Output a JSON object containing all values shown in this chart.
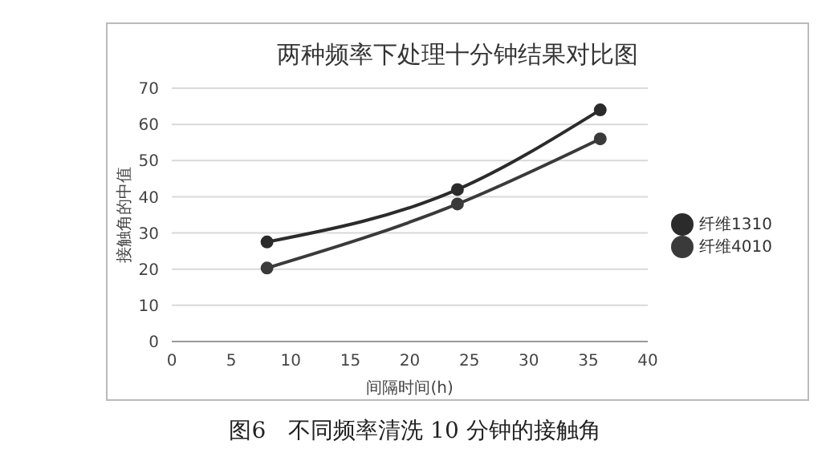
{
  "chart_data": {
    "type": "line",
    "title": "两种频率下处理十分钟结果对比图",
    "xlabel": "间隔时间(h)",
    "ylabel": "接触角的中值",
    "annotations": [
      "图6　不同频率清洗 10 分钟的接触角"
    ],
    "x": [
      8,
      24,
      36
    ],
    "series": [
      {
        "name": "纤维1310",
        "color": "#2b2b2b",
        "values": [
          27.5,
          42,
          64
        ]
      },
      {
        "name": "纤维4010",
        "color": "#3a3a3a",
        "values": [
          20.3,
          38,
          56
        ]
      }
    ],
    "xlim": [
      0,
      40
    ],
    "xticks": [
      0,
      5,
      10,
      15,
      20,
      25,
      30,
      35,
      40
    ],
    "ylim": [
      0,
      70
    ],
    "yticks": [
      0,
      10,
      20,
      30,
      40,
      50,
      60,
      70
    ],
    "grid": "y",
    "legend": "right",
    "marker": "circle",
    "line_style": "solid"
  }
}
